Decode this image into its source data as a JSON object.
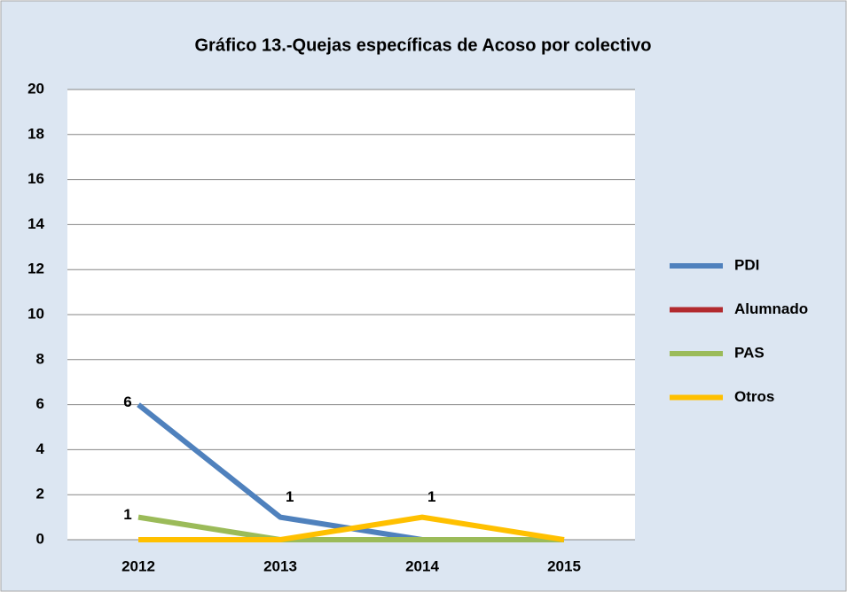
{
  "chart_data": {
    "type": "line",
    "title": "Gráfico 13.-Quejas específicas de Acoso por colectivo",
    "categories": [
      "2012",
      "2013",
      "2014",
      "2015"
    ],
    "series": [
      {
        "name": "PDI",
        "color": "#4f81bd",
        "values": [
          6,
          1,
          0,
          0
        ],
        "value_labels": [
          "6",
          "1",
          null,
          null
        ]
      },
      {
        "name": "Alumnado",
        "color": "#b22a2e",
        "values": [
          0,
          0,
          0,
          0
        ],
        "value_labels": [
          null,
          null,
          null,
          null
        ]
      },
      {
        "name": "PAS",
        "color": "#9bbb59",
        "values": [
          1,
          0,
          0,
          0
        ],
        "value_labels": [
          "1",
          null,
          null,
          null
        ]
      },
      {
        "name": "Otros",
        "color": "#ffc000",
        "values": [
          0,
          0,
          1,
          0
        ],
        "value_labels": [
          null,
          null,
          "1",
          null
        ]
      }
    ],
    "ylim": [
      0,
      20
    ],
    "yticks": [
      0,
      2,
      4,
      6,
      8,
      10,
      12,
      14,
      16,
      18,
      20
    ],
    "grid": true,
    "legend": "right"
  }
}
